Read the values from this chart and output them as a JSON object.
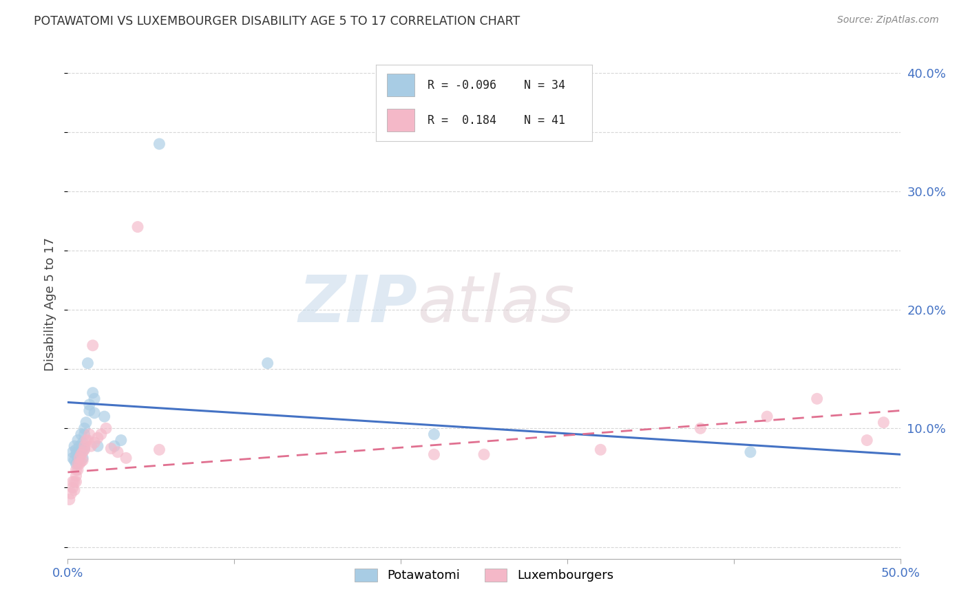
{
  "title": "POTAWATOMI VS LUXEMBOURGER DISABILITY AGE 5 TO 17 CORRELATION CHART",
  "source": "Source: ZipAtlas.com",
  "ylabel": "Disability Age 5 to 17",
  "xlim": [
    0.0,
    0.5
  ],
  "ylim": [
    -0.01,
    0.42
  ],
  "watermark_zip": "ZIP",
  "watermark_atlas": "atlas",
  "legend_r_blue": "-0.096",
  "legend_n_blue": "34",
  "legend_r_pink": "0.184",
  "legend_n_pink": "41",
  "blue_scatter_color": "#a8cce4",
  "pink_scatter_color": "#f4b8c8",
  "blue_line_color": "#4472c4",
  "pink_line_color": "#e07090",
  "background_color": "#ffffff",
  "grid_color": "#cccccc",
  "tick_color": "#4472c4",
  "potawatomi_x": [
    0.003,
    0.003,
    0.004,
    0.004,
    0.005,
    0.005,
    0.005,
    0.006,
    0.006,
    0.006,
    0.007,
    0.007,
    0.008,
    0.008,
    0.009,
    0.009,
    0.01,
    0.01,
    0.01,
    0.011,
    0.012,
    0.013,
    0.013,
    0.015,
    0.016,
    0.016,
    0.018,
    0.022,
    0.028,
    0.032,
    0.055,
    0.12,
    0.22,
    0.41
  ],
  "potawatomi_y": [
    0.075,
    0.08,
    0.073,
    0.085,
    0.07,
    0.078,
    0.082,
    0.075,
    0.08,
    0.09,
    0.085,
    0.078,
    0.082,
    0.095,
    0.075,
    0.088,
    0.083,
    0.095,
    0.1,
    0.105,
    0.155,
    0.12,
    0.115,
    0.13,
    0.125,
    0.113,
    0.085,
    0.11,
    0.085,
    0.09,
    0.34,
    0.155,
    0.095,
    0.08
  ],
  "luxembourger_x": [
    0.001,
    0.002,
    0.003,
    0.003,
    0.004,
    0.004,
    0.005,
    0.005,
    0.005,
    0.006,
    0.006,
    0.007,
    0.007,
    0.008,
    0.008,
    0.009,
    0.009,
    0.01,
    0.01,
    0.011,
    0.012,
    0.013,
    0.014,
    0.015,
    0.016,
    0.018,
    0.02,
    0.023,
    0.026,
    0.03,
    0.035,
    0.042,
    0.055,
    0.22,
    0.25,
    0.32,
    0.38,
    0.42,
    0.45,
    0.48,
    0.49
  ],
  "luxembourger_y": [
    0.04,
    0.045,
    0.05,
    0.055,
    0.048,
    0.055,
    0.055,
    0.06,
    0.065,
    0.065,
    0.07,
    0.07,
    0.075,
    0.072,
    0.078,
    0.08,
    0.073,
    0.082,
    0.085,
    0.09,
    0.09,
    0.095,
    0.085,
    0.17,
    0.088,
    0.092,
    0.095,
    0.1,
    0.083,
    0.08,
    0.075,
    0.27,
    0.082,
    0.078,
    0.078,
    0.082,
    0.1,
    0.11,
    0.125,
    0.09,
    0.105
  ],
  "blue_trendline_start_y": 0.122,
  "blue_trendline_end_y": 0.078,
  "pink_trendline_start_y": 0.063,
  "pink_trendline_end_y": 0.115
}
